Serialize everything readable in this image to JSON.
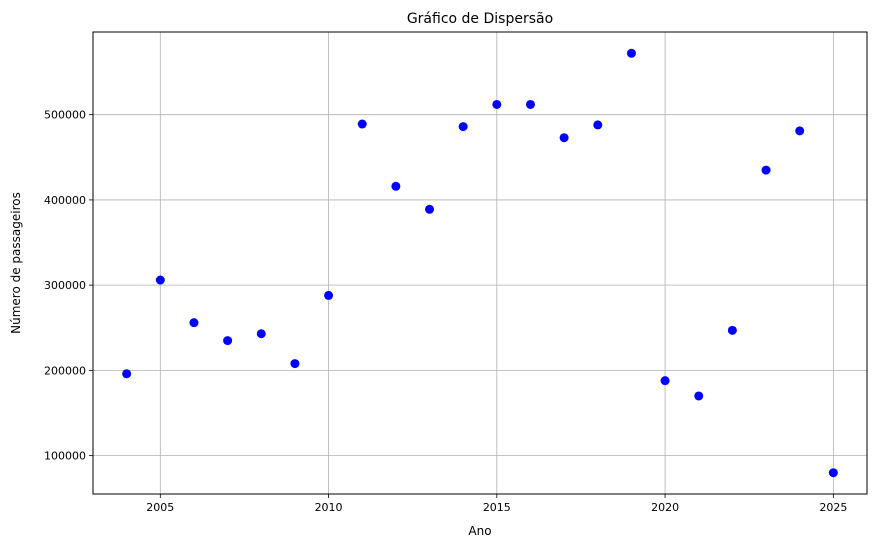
{
  "chart_data": {
    "type": "scatter",
    "title": "Gráfico de Dispersão",
    "xlabel": "Ano",
    "ylabel": "Número de passageiros",
    "xlim": [
      2003,
      2026
    ],
    "ylim": [
      55000,
      597000
    ],
    "xticks": [
      2005,
      2010,
      2015,
      2020,
      2025
    ],
    "yticks": [
      100000,
      200000,
      300000,
      400000,
      500000
    ],
    "xtick_labels": [
      "2005",
      "2010",
      "2015",
      "2020",
      "2025"
    ],
    "ytick_labels": [
      "100000",
      "200000",
      "300000",
      "400000",
      "500000"
    ],
    "grid": true,
    "point_color": "#0000ff",
    "points": [
      {
        "x": 2004,
        "y": 196000
      },
      {
        "x": 2005,
        "y": 306000
      },
      {
        "x": 2006,
        "y": 256000
      },
      {
        "x": 2007,
        "y": 235000
      },
      {
        "x": 2008,
        "y": 243000
      },
      {
        "x": 2009,
        "y": 208000
      },
      {
        "x": 2010,
        "y": 288000
      },
      {
        "x": 2011,
        "y": 489000
      },
      {
        "x": 2012,
        "y": 416000
      },
      {
        "x": 2013,
        "y": 389000
      },
      {
        "x": 2014,
        "y": 486000
      },
      {
        "x": 2015,
        "y": 512000
      },
      {
        "x": 2016,
        "y": 512000
      },
      {
        "x": 2017,
        "y": 473000
      },
      {
        "x": 2018,
        "y": 488000
      },
      {
        "x": 2019,
        "y": 572000
      },
      {
        "x": 2020,
        "y": 188000
      },
      {
        "x": 2021,
        "y": 170000
      },
      {
        "x": 2022,
        "y": 247000
      },
      {
        "x": 2023,
        "y": 435000
      },
      {
        "x": 2024,
        "y": 481000
      },
      {
        "x": 2025,
        "y": 80000
      }
    ]
  }
}
